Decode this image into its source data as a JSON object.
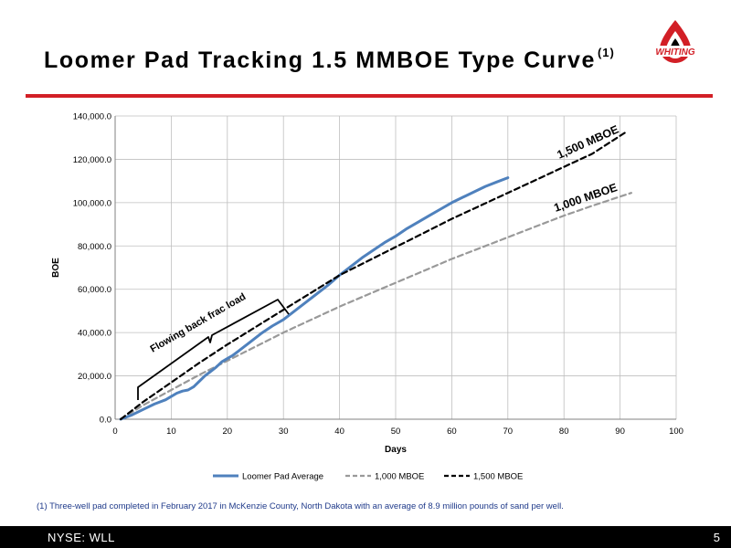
{
  "header": {
    "title": "Loomer Pad Tracking 1.5 MMBOE Type Curve",
    "title_sup": "(1)",
    "logo_text": "WHITING"
  },
  "colors": {
    "accent_red": "#d21f26",
    "series_blue": "#4f81bd",
    "series_gray": "#999999",
    "series_black": "#000000"
  },
  "chart_data": {
    "type": "line",
    "xlabel": "Days",
    "ylabel": "BOE",
    "xlim": [
      0,
      100
    ],
    "ylim": [
      0,
      140000
    ],
    "xticks": [
      "0",
      "10",
      "20",
      "30",
      "40",
      "50",
      "60",
      "70",
      "80",
      "90",
      "100"
    ],
    "yticks": [
      "0.0",
      "20,000.0",
      "40,000.0",
      "60,000.0",
      "80,000.0",
      "100,000.0",
      "120,000.0",
      "140,000.0"
    ],
    "grid": true,
    "legend_position": "bottom",
    "series": [
      {
        "name": "Loomer Pad Average",
        "style": "solid",
        "x": [
          1,
          3,
          5,
          7,
          9,
          10,
          11,
          12,
          13,
          14,
          15,
          16,
          17,
          18,
          19,
          20,
          21,
          22,
          24,
          26,
          28,
          30,
          32,
          34,
          36,
          38,
          40,
          42,
          44,
          46,
          48,
          50,
          52,
          54,
          56,
          58,
          60,
          62,
          64,
          66,
          68,
          70
        ],
        "y": [
          0,
          2000,
          4500,
          7000,
          9000,
          10500,
          12000,
          13000,
          13500,
          15000,
          17500,
          20000,
          22000,
          24000,
          26500,
          28000,
          29500,
          31500,
          35500,
          39500,
          43000,
          46000,
          50000,
          54000,
          58000,
          62000,
          66500,
          70500,
          74500,
          78000,
          81500,
          84500,
          88000,
          91000,
          94000,
          97000,
          100000,
          102500,
          105000,
          107500,
          109500,
          111500
        ]
      },
      {
        "name": "1,000 MBOE",
        "style": "dashed",
        "x": [
          1,
          5,
          10,
          15,
          20,
          25,
          30,
          35,
          40,
          45,
          50,
          55,
          60,
          65,
          70,
          75,
          80,
          85,
          92
        ],
        "y": [
          0,
          6500,
          13500,
          20500,
          27000,
          33500,
          40000,
          46000,
          52000,
          57500,
          63000,
          68500,
          74000,
          79000,
          84000,
          89000,
          94000,
          98500,
          104500
        ]
      },
      {
        "name": "1,500 MBOE",
        "style": "dashed",
        "x": [
          1,
          5,
          10,
          15,
          20,
          25,
          30,
          35,
          40,
          45,
          50,
          55,
          60,
          65,
          70,
          75,
          80,
          85,
          91
        ],
        "y": [
          0,
          8000,
          17000,
          26000,
          34500,
          42500,
          50500,
          58500,
          66500,
          73000,
          79500,
          86000,
          92500,
          98500,
          104500,
          110500,
          116500,
          122500,
          132500
        ]
      }
    ],
    "annotations": {
      "brace_label": "Flowing back frac load",
      "label_1500": "1,500 MBOE",
      "label_1000": "1,000 MBOE"
    }
  },
  "footnote": "(1) Three-well pad completed in February 2017 in McKenzie County, North Dakota with an average of 8.9 million pounds of sand per well.",
  "footer": {
    "ticker": "NYSE:  WLL",
    "page_number": "5"
  }
}
